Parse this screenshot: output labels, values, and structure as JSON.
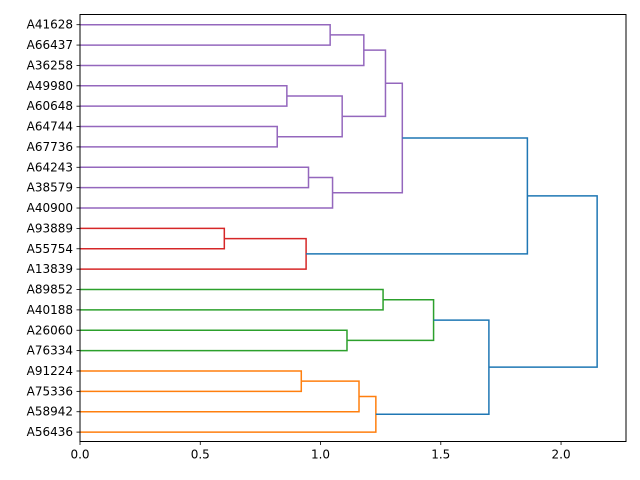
{
  "chart_data": {
    "type": "dendrogram",
    "orientation": "horizontal",
    "xlim": [
      0,
      2.27
    ],
    "x_ticks": [
      {
        "value": 0.0,
        "label": "0.0"
      },
      {
        "value": 0.5,
        "label": "0.5"
      },
      {
        "value": 1.0,
        "label": "1.0"
      },
      {
        "value": 1.5,
        "label": "1.5"
      },
      {
        "value": 2.0,
        "label": "2.0"
      }
    ],
    "leaves": [
      "A41628",
      "A66437",
      "A36258",
      "A49980",
      "A60648",
      "A64744",
      "A67736",
      "A64243",
      "A38579",
      "A40900",
      "A93889",
      "A55754",
      "A13839",
      "A89852",
      "A40188",
      "A26060",
      "A76334",
      "A91224",
      "A75336",
      "A58942",
      "A56436"
    ],
    "colors": {
      "purple": "#9467bd",
      "red": "#d62728",
      "green": "#2ca02c",
      "orange": "#ff7f0e",
      "blue": "#1f77b4"
    },
    "links": [
      {
        "id": "c1",
        "left": "A41628",
        "right": "A66437",
        "height": 1.04,
        "color": "purple"
      },
      {
        "id": "c2",
        "left": "c1",
        "right": "A36258",
        "height": 1.18,
        "color": "purple"
      },
      {
        "id": "c3",
        "left": "A64744",
        "right": "A67736",
        "height": 0.82,
        "color": "purple"
      },
      {
        "id": "c4",
        "left": "A49980",
        "right": "A60648",
        "height": 0.86,
        "color": "purple"
      },
      {
        "id": "c5",
        "left": "c4",
        "right": "c3",
        "height": 1.09,
        "color": "purple"
      },
      {
        "id": "c6",
        "left": "c2",
        "right": "c5",
        "height": 1.27,
        "color": "purple"
      },
      {
        "id": "c7",
        "left": "A64243",
        "right": "A38579",
        "height": 0.95,
        "color": "purple"
      },
      {
        "id": "c8",
        "left": "c7",
        "right": "A40900",
        "height": 1.05,
        "color": "purple"
      },
      {
        "id": "c9",
        "left": "c6",
        "right": "c8",
        "height": 1.34,
        "color": "purple"
      },
      {
        "id": "c10",
        "left": "A93889",
        "right": "A55754",
        "height": 0.6,
        "color": "red"
      },
      {
        "id": "c11",
        "left": "c10",
        "right": "A13839",
        "height": 0.94,
        "color": "red"
      },
      {
        "id": "c12",
        "left": "c9",
        "right": "c11",
        "height": 1.86,
        "color": "blue"
      },
      {
        "id": "c13",
        "left": "A89852",
        "right": "A40188",
        "height": 1.26,
        "color": "green"
      },
      {
        "id": "c14",
        "left": "A26060",
        "right": "A76334",
        "height": 1.11,
        "color": "green"
      },
      {
        "id": "c15",
        "left": "c13",
        "right": "c14",
        "height": 1.47,
        "color": "green"
      },
      {
        "id": "c16",
        "left": "A91224",
        "right": "A75336",
        "height": 0.92,
        "color": "orange"
      },
      {
        "id": "c17",
        "left": "c16",
        "right": "A58942",
        "height": 1.16,
        "color": "orange"
      },
      {
        "id": "c18",
        "left": "c17",
        "right": "A56436",
        "height": 1.23,
        "color": "orange"
      },
      {
        "id": "c19",
        "left": "c15",
        "right": "c18",
        "height": 1.7,
        "color": "blue"
      },
      {
        "id": "c20",
        "left": "c12",
        "right": "c19",
        "height": 2.15,
        "color": "blue"
      }
    ]
  }
}
